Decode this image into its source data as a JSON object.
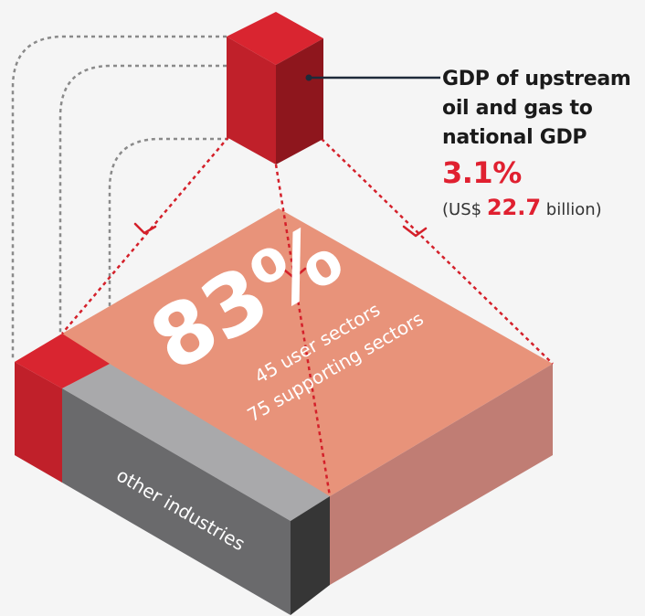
{
  "callout": {
    "title_lines": [
      "GDP of upstream",
      "oil and gas to",
      "national GDP"
    ],
    "percent": "3.1%",
    "amount_prefix": "(US$",
    "amount_value": "22.7",
    "amount_suffix": "billion)"
  },
  "platform": {
    "share": "83%",
    "line1": "45 user sectors",
    "line2": "75 supporting sectors",
    "other_label": "other industries"
  },
  "colors": {
    "red_front": "#c0202a",
    "red_top": "#d92530",
    "red_side": "#8e161d",
    "salmon_top": "#e8937a",
    "salmon_side": "#c07d74",
    "gray_top": "#a9a9ab",
    "gray_front": "#6a6a6c",
    "gray_side": "#363636",
    "dotted_red": "#d4202a",
    "dotted_gray": "#8a8a8a"
  },
  "icons": [
    "arrowhead-icon"
  ]
}
